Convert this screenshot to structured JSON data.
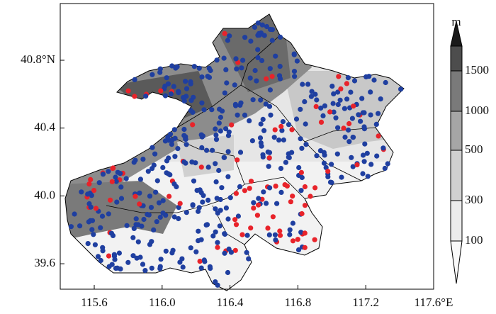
{
  "map": {
    "xticks": [
      115.6,
      {
        "value": 116.0,
        "label": "116.0"
      },
      116.4,
      116.8,
      117.2,
      {
        "value": 117.6,
        "label": "117.6°E"
      }
    ],
    "yticks": [
      {
        "value": 40.8,
        "label": "40.8°N"
      },
      40.4,
      {
        "value": 40.0,
        "label": "40.0"
      },
      39.6
    ],
    "colorbar": {
      "unit": "m",
      "levels": [
        1500,
        1000,
        500,
        300,
        100
      ]
    }
  }
}
